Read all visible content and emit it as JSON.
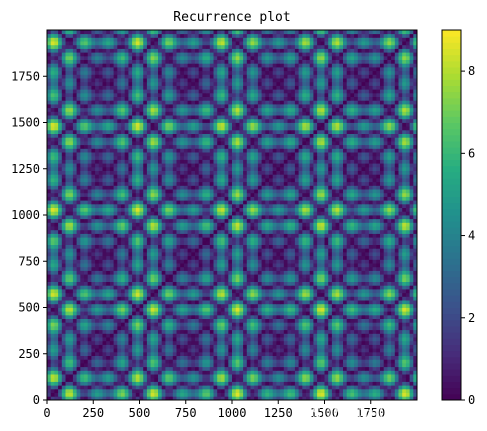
{
  "chart_data": {
    "type": "heatmap",
    "title": "Recurrence plot",
    "xlabel": "",
    "ylabel": "",
    "xlim": [
      0,
      2000
    ],
    "ylim": [
      0,
      2000
    ],
    "x_ticks": [
      0,
      250,
      500,
      750,
      1000,
      1250,
      1500,
      1750
    ],
    "y_ticks": [
      0,
      250,
      500,
      750,
      1000,
      1250,
      1500,
      1750
    ],
    "colorbar": {
      "min": 0,
      "max": 9,
      "ticks": [
        0,
        2,
        4,
        6,
        8
      ],
      "colormap": "viridis"
    },
    "grid": false,
    "n_samples": 2000
  },
  "watermark": "CSDN @m0_60804625"
}
